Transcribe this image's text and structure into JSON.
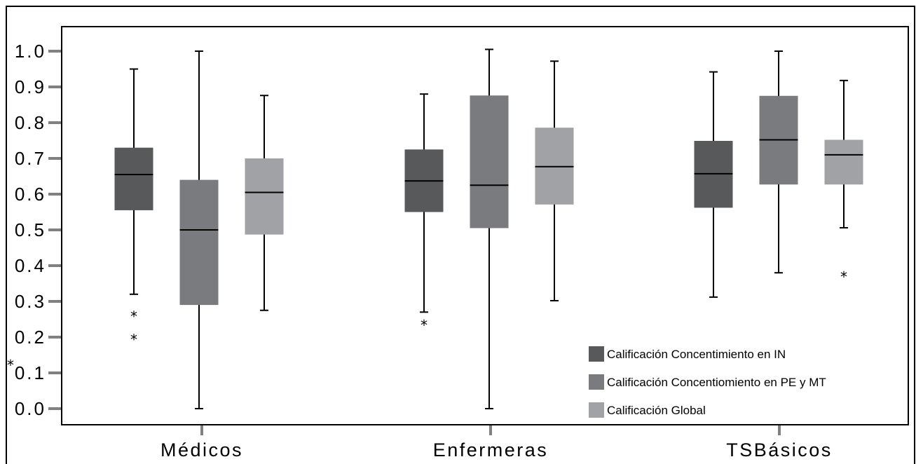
{
  "chart_data": {
    "type": "box",
    "categories": [
      "Médicos",
      "Enfermeras",
      "TSBásicos"
    ],
    "ylim": [
      0,
      1
    ],
    "yticks": [
      {
        "value": 1.0,
        "label": "1.0"
      },
      {
        "value": 0.9,
        "label": "0.9"
      },
      {
        "value": 0.8,
        "label": "0.8"
      },
      {
        "value": 0.7,
        "label": "0.7"
      },
      {
        "value": 0.6,
        "label": "0.6"
      },
      {
        "value": 0.5,
        "label": "0.5"
      },
      {
        "value": 0.4,
        "label": "0.4"
      },
      {
        "value": 0.3,
        "label": "0.3"
      },
      {
        "value": 0.2,
        "label": "0.2"
      },
      {
        "value": 0.1,
        "label": "0.1"
      },
      {
        "value": 0.0,
        "label": "0.0"
      }
    ],
    "grid": false,
    "legend": "bottom-right",
    "outlier_marker": "*",
    "series": [
      {
        "name": "Calificación Concentimiento en IN",
        "color": "#58595b",
        "boxes": [
          {
            "min": 0.32,
            "q1": 0.555,
            "median": 0.655,
            "q3": 0.73,
            "max": 0.95,
            "outliers": [
              0.27,
              0.205
            ]
          },
          {
            "min": 0.27,
            "q1": 0.55,
            "median": 0.637,
            "q3": 0.725,
            "max": 0.88,
            "outliers": [
              0.245
            ]
          },
          {
            "min": 0.312,
            "q1": 0.562,
            "median": 0.657,
            "q3": 0.749,
            "max": 0.942,
            "outliers": []
          }
        ]
      },
      {
        "name": "Calificación Concentiomiento en PE y MT",
        "color": "#7a7b7e",
        "boxes": [
          {
            "min": 0.0,
            "q1": 0.29,
            "median": 0.5,
            "q3": 0.64,
            "max": 1.0,
            "outliers": []
          },
          {
            "min": 0.0,
            "q1": 0.505,
            "median": 0.625,
            "q3": 0.876,
            "max": 1.005,
            "outliers": []
          },
          {
            "min": 0.38,
            "q1": 0.627,
            "median": 0.752,
            "q3": 0.875,
            "max": 1.0,
            "outliers": []
          }
        ]
      },
      {
        "name": "Calificación Global",
        "color": "#a1a2a5",
        "boxes": [
          {
            "min": 0.275,
            "q1": 0.487,
            "median": 0.605,
            "q3": 0.7,
            "max": 0.876,
            "outliers": []
          },
          {
            "min": 0.302,
            "q1": 0.571,
            "median": 0.677,
            "q3": 0.786,
            "max": 0.972,
            "outliers": []
          },
          {
            "min": 0.506,
            "q1": 0.627,
            "median": 0.71,
            "q3": 0.752,
            "max": 0.918,
            "outliers": [
              0.38
            ]
          }
        ]
      }
    ],
    "annotations": [
      {
        "text": "*"
      }
    ]
  }
}
